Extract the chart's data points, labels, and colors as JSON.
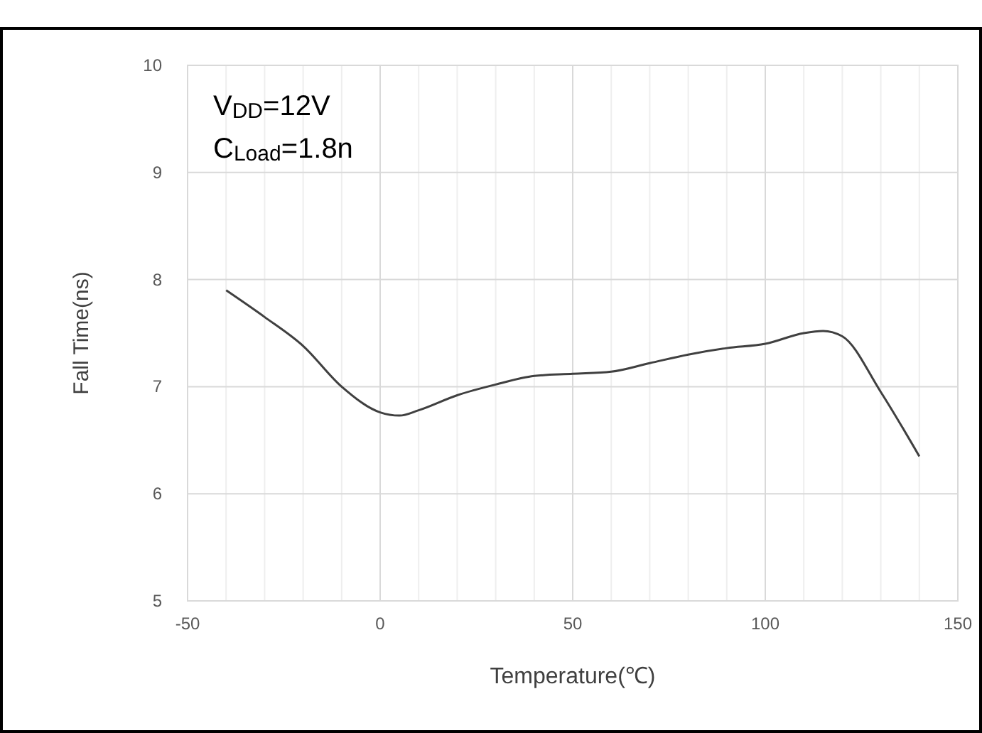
{
  "chart_data": {
    "type": "line",
    "xlabel": "Temperature(℃)",
    "ylabel": "Fall Time(ns)",
    "annotations": [
      "V$_{DD}$=12V",
      "C$_{Load}$=1.8n"
    ],
    "x": [
      -40,
      -30,
      -20,
      -10,
      0,
      5,
      10,
      20,
      30,
      40,
      50,
      60,
      70,
      80,
      90,
      100,
      110,
      115,
      120,
      130,
      140
    ],
    "series": [
      {
        "color": "#404040",
        "values": [
          7.9,
          7.65,
          7.38,
          7.0,
          6.76,
          6.73,
          6.78,
          6.92,
          7.02,
          7.1,
          7.12,
          7.14,
          7.22,
          7.3,
          7.36,
          7.4,
          7.5,
          7.52,
          7.47,
          6.95,
          6.35
        ]
      }
    ],
    "xlim": [
      -50,
      150
    ],
    "xticks": [
      -50,
      {
        "value": -40,
        "label": null
      },
      {
        "value": -30,
        "label": null
      },
      {
        "value": -20,
        "label": null
      },
      {
        "value": -10,
        "label": null
      },
      0,
      {
        "value": 10,
        "label": null
      },
      {
        "value": 20,
        "label": null
      },
      {
        "value": 30,
        "label": null
      },
      {
        "value": 40,
        "label": null
      },
      50,
      {
        "value": 60,
        "label": null
      },
      {
        "value": 70,
        "label": null
      },
      {
        "value": 80,
        "label": null
      },
      {
        "value": 90,
        "label": null
      },
      100,
      {
        "value": 110,
        "label": null
      },
      {
        "value": 120,
        "label": null
      },
      {
        "value": 130,
        "label": null
      },
      {
        "value": 140,
        "label": null
      },
      150
    ],
    "ylim": [
      5,
      10
    ],
    "yticks": [
      5,
      6,
      7,
      8,
      9,
      10
    ],
    "grid": true,
    "marker": "none",
    "line_style": "solid"
  }
}
